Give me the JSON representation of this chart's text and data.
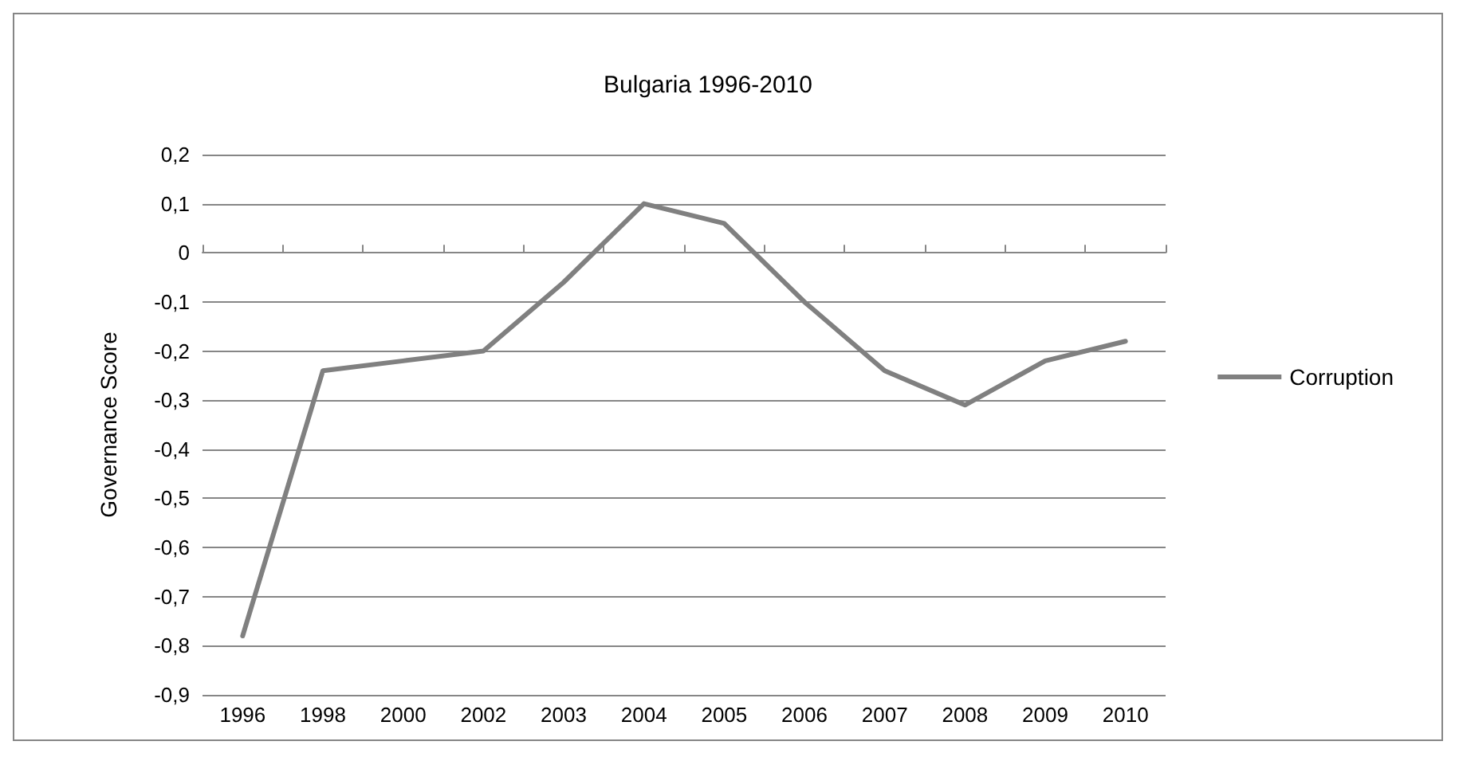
{
  "chart_data": {
    "type": "line",
    "title": "Bulgaria 1996-2010",
    "ylabel": "Governance Score",
    "categories": [
      "1996",
      "1998",
      "2000",
      "2002",
      "2003",
      "2004",
      "2005",
      "2006",
      "2007",
      "2008",
      "2009",
      "2010"
    ],
    "series": [
      {
        "name": "Corruption",
        "color": "#808080",
        "values": [
          -0.78,
          -0.24,
          -0.22,
          -0.2,
          -0.06,
          0.1,
          0.06,
          -0.1,
          -0.24,
          -0.31,
          -0.22,
          -0.18
        ]
      }
    ],
    "ylim": [
      -0.9,
      0.2
    ],
    "yticks": [
      {
        "value": -0.9,
        "label": "-0,9"
      },
      {
        "value": -0.8,
        "label": "-0,8"
      },
      {
        "value": -0.7,
        "label": "-0,7"
      },
      {
        "value": -0.6,
        "label": "-0,6"
      },
      {
        "value": -0.5,
        "label": "-0,5"
      },
      {
        "value": -0.4,
        "label": "-0,4"
      },
      {
        "value": -0.3,
        "label": "-0,3"
      },
      {
        "value": -0.2,
        "label": "-0,2"
      },
      {
        "value": -0.1,
        "label": "-0,1"
      },
      0,
      {
        "value": 0.1,
        "label": "0,1"
      },
      {
        "value": 0.2,
        "label": "0,2"
      }
    ],
    "grid": "y",
    "legend": "right",
    "marker": "none",
    "line_style": "solid"
  }
}
